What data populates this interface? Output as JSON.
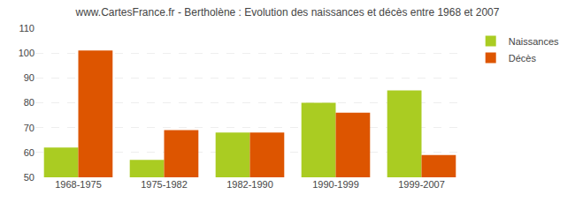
{
  "chart_data": {
    "type": "bar",
    "title": "www.CartesFrance.fr - Bertholène : Evolution des naissances et décès entre 1968 et 2007",
    "categories": [
      "1968-1975",
      "1975-1982",
      "1982-1990",
      "1990-1999",
      "1999-2007"
    ],
    "series": [
      {
        "name": "Naissances",
        "color": "#aacc22",
        "values": [
          62,
          57,
          68,
          80,
          85
        ]
      },
      {
        "name": "Décès",
        "color": "#dd5500",
        "values": [
          101,
          69,
          68,
          76,
          59
        ]
      }
    ],
    "ylim": [
      50,
      110
    ],
    "yticks": [
      50,
      60,
      70,
      80,
      90,
      100,
      110
    ],
    "grid": true,
    "legend": "upper right"
  }
}
